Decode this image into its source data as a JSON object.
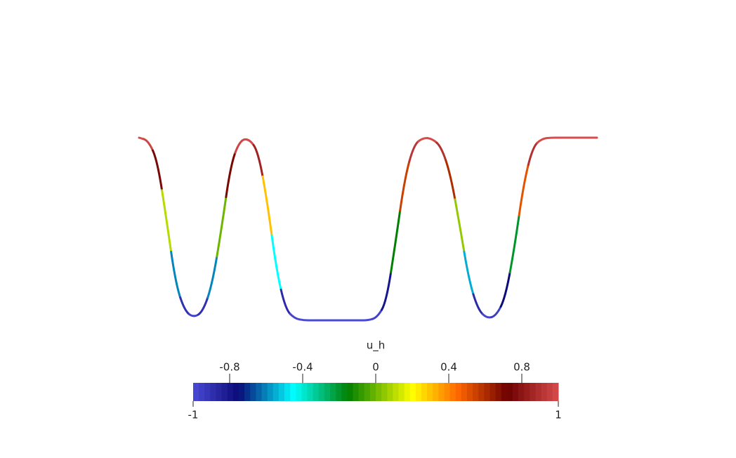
{
  "chart_data": {
    "type": "line",
    "title": "u_h",
    "values": [
      1.0,
      0.97,
      0.75,
      0.1,
      -0.6,
      -0.9,
      -0.97,
      -0.9,
      -0.6,
      0.0,
      0.7,
      0.97,
      0.99,
      0.85,
      0.3,
      -0.45,
      -0.88,
      -0.98,
      -1.0,
      -1.0,
      -1.0,
      -1.0,
      -1.0,
      -1.0,
      -1.0,
      -1.0,
      -0.97,
      -0.8,
      -0.15,
      0.55,
      0.92,
      1.0,
      0.99,
      0.9,
      0.6,
      0.05,
      -0.55,
      -0.88,
      -0.98,
      -0.95,
      -0.75,
      -0.2,
      0.5,
      0.9,
      0.99,
      1.0,
      1.0,
      1.0,
      1.0,
      1.0,
      1.0
    ],
    "ylim": [
      -1,
      1
    ],
    "clim": [
      -1,
      1
    ],
    "cticks": [
      -0.8,
      -0.4,
      0,
      0.4,
      0.8
    ],
    "colormap": [
      {
        "value": -1,
        "color": "#4a4ad6"
      },
      {
        "value": -0.75,
        "color": "#0a0a78"
      },
      {
        "value": -0.45,
        "color": "#00ffff"
      },
      {
        "value": -0.15,
        "color": "#008000"
      },
      {
        "value": 0.2,
        "color": "#ffff00"
      },
      {
        "value": 0.45,
        "color": "#ff6600"
      },
      {
        "value": 0.72,
        "color": "#6e0000"
      },
      {
        "value": 1,
        "color": "#d84c4c"
      }
    ]
  }
}
